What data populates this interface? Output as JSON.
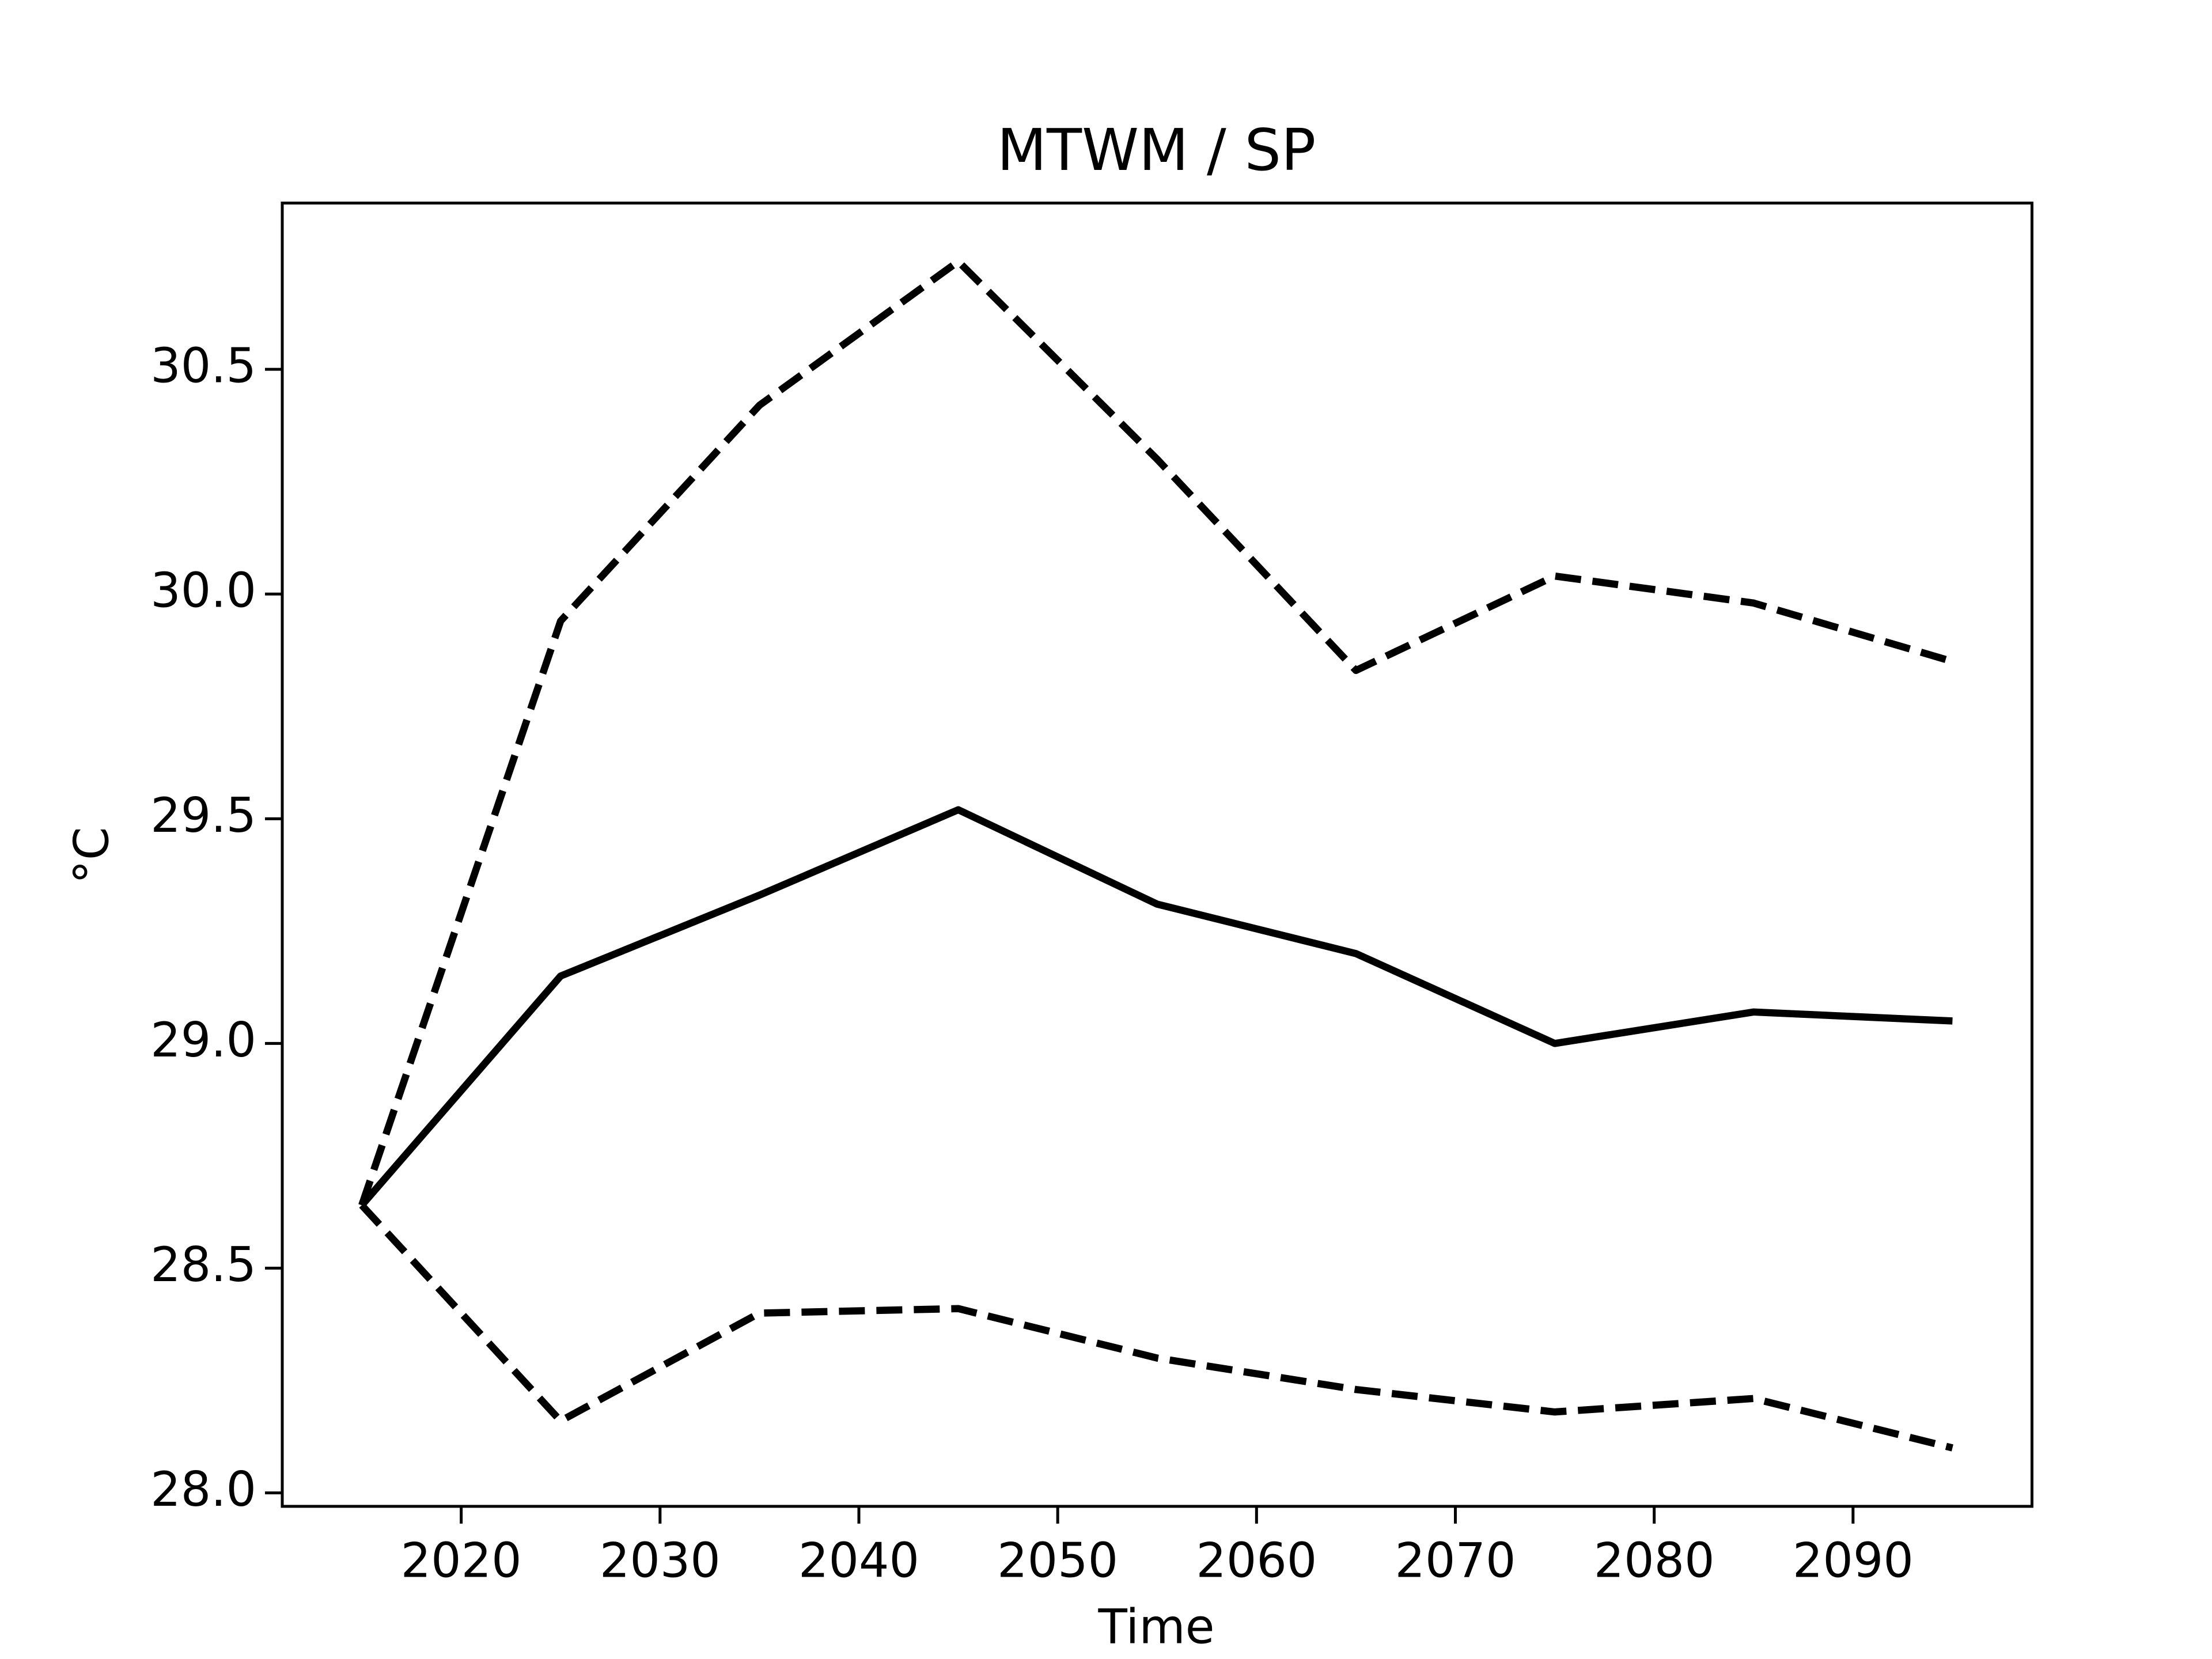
{
  "chart_data": {
    "type": "line",
    "title": "MTWM / SP",
    "xlabel": "Time",
    "ylabel": "°C",
    "x": [
      2015,
      2025,
      2035,
      2045,
      2055,
      2065,
      2075,
      2085,
      2095
    ],
    "series": [
      {
        "color": "#000000",
        "dashed": false,
        "values": [
          28.64,
          29.15,
          29.33,
          29.52,
          29.31,
          29.2,
          29.0,
          29.07,
          29.05
        ]
      },
      {
        "color": "#000000",
        "dashed": true,
        "values": [
          28.64,
          29.94,
          30.42,
          30.74,
          30.3,
          29.83,
          30.04,
          29.98,
          29.85
        ]
      },
      {
        "color": "#000000",
        "dashed": true,
        "values": [
          28.64,
          28.16,
          28.4,
          28.41,
          28.3,
          28.23,
          28.18,
          28.21,
          28.1
        ]
      }
    ],
    "xlim": [
      2011,
      2099
    ],
    "xticks": [
      2020,
      2030,
      2040,
      2050,
      2060,
      2070,
      2080,
      2090
    ],
    "ylim": [
      27.97,
      30.87
    ],
    "yticks": [
      {
        "value": 28,
        "label": "28.0"
      },
      28.5,
      {
        "value": 29,
        "label": "29.0"
      },
      29.5,
      {
        "value": 30,
        "label": "30.0"
      },
      30.5
    ],
    "grid": false
  }
}
